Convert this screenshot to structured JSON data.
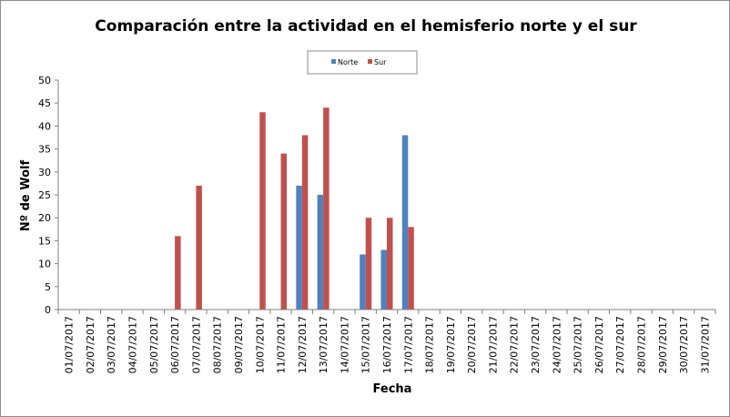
{
  "chart_data": {
    "type": "bar",
    "title": "Comparación entre la actividad en el hemisferio norte y el sur",
    "xlabel": "Fecha",
    "ylabel": "Nº de Wolf",
    "ylim": [
      0,
      50
    ],
    "yticks": [
      0,
      5,
      10,
      15,
      20,
      25,
      30,
      35,
      40,
      45,
      50
    ],
    "grid": false,
    "legend_position": "top-center",
    "categories": [
      "01/07/2017",
      "02/07/2017",
      "03/07/2017",
      "04/07/2017",
      "05/07/2017",
      "06/07/2017",
      "07/07/2017",
      "08/07/2017",
      "09/07/2017",
      "10/07/2017",
      "11/07/2017",
      "12/07/2017",
      "13/07/2017",
      "14/07/2017",
      "15/07/2017",
      "16/07/2017",
      "17/07/2017",
      "18/07/2017",
      "19/07/2017",
      "20/07/2017",
      "21/07/2017",
      "22/07/2017",
      "23/07/2017",
      "24/07/2017",
      "25/07/2017",
      "26/07/2017",
      "27/07/2017",
      "28/07/2017",
      "29/07/2017",
      "30/07/2017",
      "31/07/2017"
    ],
    "series": [
      {
        "name": "Norte",
        "color": "#4f81bd",
        "values": [
          0,
          0,
          0,
          0,
          0,
          0,
          0,
          0,
          0,
          0,
          0,
          27,
          25,
          0,
          12,
          13,
          38,
          0,
          0,
          0,
          0,
          0,
          0,
          0,
          0,
          0,
          0,
          0,
          0,
          0,
          0
        ]
      },
      {
        "name": "Sur",
        "color": "#c0504d",
        "values": [
          0,
          0,
          0,
          0,
          0,
          16,
          27,
          0,
          0,
          43,
          34,
          38,
          44,
          0,
          20,
          20,
          18,
          0,
          0,
          0,
          0,
          0,
          0,
          0,
          0,
          0,
          0,
          0,
          0,
          0,
          0
        ]
      }
    ]
  }
}
